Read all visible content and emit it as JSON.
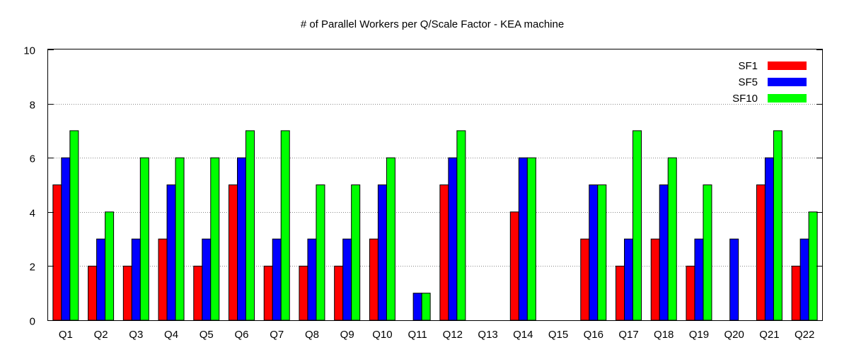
{
  "chart_data": {
    "type": "bar",
    "title": "# of Parallel Workers per Q/Scale Factor - KEA machine",
    "xlabel": "",
    "ylabel": "",
    "ylim": [
      0,
      10
    ],
    "yticks": [
      0,
      2,
      4,
      6,
      8,
      10
    ],
    "grid": true,
    "legend_position": "top-right",
    "categories": [
      "Q1",
      "Q2",
      "Q3",
      "Q4",
      "Q5",
      "Q6",
      "Q7",
      "Q8",
      "Q9",
      "Q10",
      "Q11",
      "Q12",
      "Q13",
      "Q14",
      "Q15",
      "Q16",
      "Q17",
      "Q18",
      "Q19",
      "Q20",
      "Q21",
      "Q22"
    ],
    "series": [
      {
        "name": "SF1",
        "color": "#ff0000",
        "values": [
          5,
          2,
          2,
          3,
          2,
          5,
          2,
          2,
          2,
          3,
          0,
          5,
          0,
          4,
          0,
          3,
          2,
          3,
          2,
          0,
          5,
          2
        ]
      },
      {
        "name": "SF5",
        "color": "#0000ff",
        "values": [
          6,
          3,
          3,
          5,
          3,
          6,
          3,
          3,
          3,
          5,
          1,
          6,
          0,
          6,
          0,
          5,
          3,
          5,
          3,
          3,
          6,
          3
        ]
      },
      {
        "name": "SF10",
        "color": "#00ff00",
        "values": [
          7,
          4,
          6,
          6,
          6,
          7,
          7,
          5,
          5,
          6,
          1,
          7,
          0,
          6,
          0,
          5,
          7,
          6,
          5,
          0,
          7,
          4
        ]
      }
    ]
  }
}
